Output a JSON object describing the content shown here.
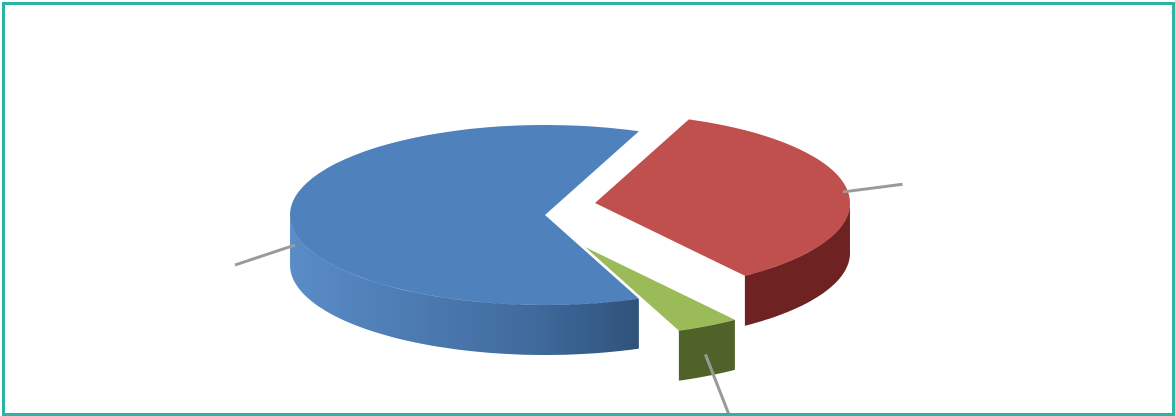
{
  "chart_data": {
    "type": "pie",
    "style": "3d-exploded",
    "title": "",
    "slices": [
      {
        "label": "",
        "value": 62,
        "color": "#4f81bd",
        "side": "#3f6a9c",
        "label_side": "left"
      },
      {
        "label": "",
        "value": 34,
        "color": "#c0504d",
        "side": "#6e2222",
        "label_side": "top-right"
      },
      {
        "label": "",
        "value": 4,
        "color": "#9bbb59",
        "side": "#4f6228",
        "label_side": "bottom-right"
      }
    ],
    "legend": "none",
    "leader_lines": true
  }
}
